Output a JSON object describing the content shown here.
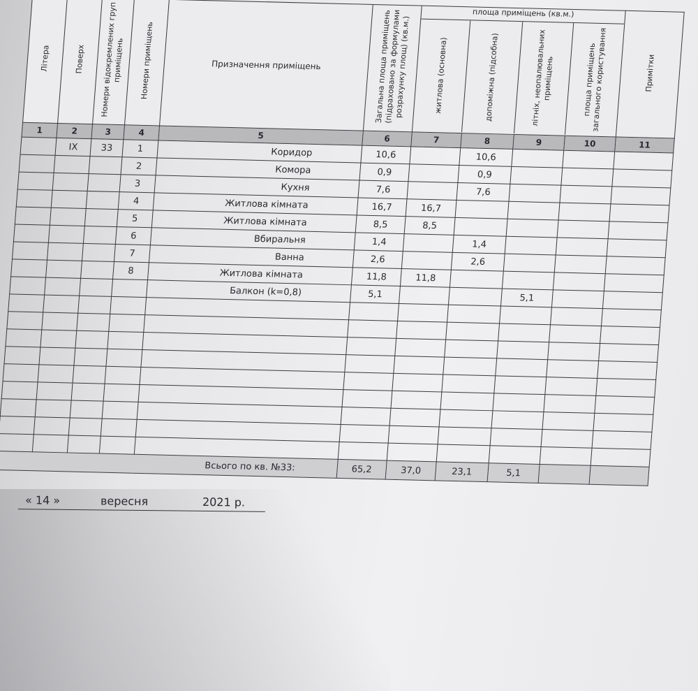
{
  "headers": {
    "area_group": "площа приміщень (кв.м.)",
    "columns": [
      "Літера",
      "Поверх",
      "Номери відокремлених груп приміщень",
      "Номери приміщень",
      "Призначення приміщень",
      "Загальна площа приміщень (підраховано за формулами розрахунку площ) (кв.м.)",
      "житлова (основна)",
      "допоміжна (підсобна)",
      "літніх, неопалювальних приміщень",
      "площа приміщень загального користування",
      "Примітки"
    ],
    "numbers": [
      "1",
      "2",
      "3",
      "4",
      "5",
      "6",
      "7",
      "8",
      "9",
      "10",
      "11"
    ]
  },
  "rows": [
    [
      "",
      "IX",
      "33",
      "1",
      "Коридор",
      "10,6",
      "",
      "10,6",
      "",
      "",
      ""
    ],
    [
      "",
      "",
      "",
      "2",
      "Комора",
      "0,9",
      "",
      "0,9",
      "",
      "",
      ""
    ],
    [
      "",
      "",
      "",
      "3",
      "Кухня",
      "7,6",
      "",
      "7,6",
      "",
      "",
      ""
    ],
    [
      "",
      "",
      "",
      "4",
      "Житлова кімната",
      "16,7",
      "16,7",
      "",
      "",
      "",
      ""
    ],
    [
      "",
      "",
      "",
      "5",
      "Житлова кімната",
      "8,5",
      "8,5",
      "",
      "",
      "",
      ""
    ],
    [
      "",
      "",
      "",
      "6",
      "Вбиральня",
      "1,4",
      "",
      "1,4",
      "",
      "",
      ""
    ],
    [
      "",
      "",
      "",
      "7",
      "Ванна",
      "2,6",
      "",
      "2,6",
      "",
      "",
      ""
    ],
    [
      "",
      "",
      "",
      "8",
      "Житлова кімната",
      "11,8",
      "11,8",
      "",
      "",
      "",
      ""
    ],
    [
      "",
      "",
      "",
      "",
      "Балкон (k=0,8)",
      "5,1",
      "",
      "",
      "5,1",
      "",
      ""
    ]
  ],
  "empty_rows": 9,
  "total": {
    "label": "Всього по кв. №33:",
    "values": [
      "65,2",
      "37,0",
      "23,1",
      "5,1",
      "",
      ""
    ]
  },
  "date": {
    "day": "« 14 »",
    "month": "вересня",
    "year": "2021 р."
  }
}
